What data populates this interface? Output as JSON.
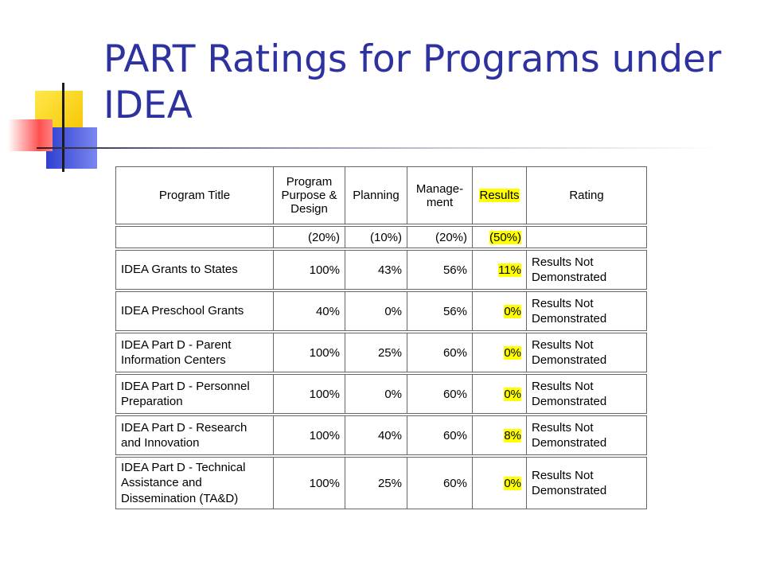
{
  "slide": {
    "title": "PART Ratings for Programs under IDEA"
  },
  "table": {
    "headers": {
      "program_title": "Program Title",
      "purpose_design": [
        "Program",
        "Purpose &",
        "Design"
      ],
      "planning": "Planning",
      "management": [
        "Manage-",
        "ment"
      ],
      "results": "Results",
      "rating": "Rating"
    },
    "weights": {
      "program_title": "",
      "purpose_design": "(20%)",
      "planning": "(10%)",
      "management": "(20%)",
      "results": "(50%)",
      "rating": ""
    },
    "rows": [
      {
        "title": [
          "IDEA Grants to States"
        ],
        "purpose": "100%",
        "planning": "43%",
        "management": "56%",
        "results": "11%",
        "rating": [
          "Results Not",
          "Demonstrated"
        ]
      },
      {
        "title": [
          "IDEA Preschool Grants"
        ],
        "purpose": "40%",
        "planning": "0%",
        "management": "56%",
        "results": "0%",
        "rating": [
          "Results Not",
          "Demonstrated"
        ]
      },
      {
        "title": [
          "IDEA Part D - Parent",
          "Information Centers"
        ],
        "purpose": "100%",
        "planning": "25%",
        "management": "60%",
        "results": "0%",
        "rating": [
          "Results Not",
          "Demonstrated"
        ]
      },
      {
        "title": [
          "IDEA Part D - Personnel",
          "Preparation"
        ],
        "purpose": "100%",
        "planning": "0%",
        "management": "60%",
        "results": "0%",
        "rating": [
          "Results Not",
          "Demonstrated"
        ]
      },
      {
        "title": [
          "IDEA Part D - Research",
          "and Innovation"
        ],
        "purpose": "100%",
        "planning": "40%",
        "management": "60%",
        "results": "8%",
        "rating": [
          "Results Not",
          "Demonstrated"
        ]
      },
      {
        "title": [
          "IDEA Part D - Technical",
          "Assistance and",
          "Dissemination (TA&D)"
        ],
        "purpose": "100%",
        "planning": "25%",
        "management": "60%",
        "results": "0%",
        "rating": [
          "Results Not",
          "Demonstrated"
        ]
      }
    ]
  },
  "colors": {
    "title": "#2e31a0",
    "highlight": "#ffff00"
  }
}
